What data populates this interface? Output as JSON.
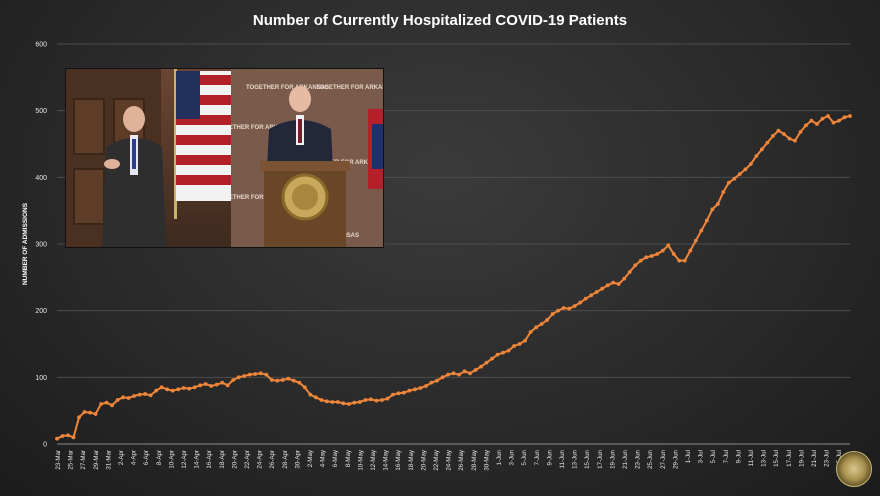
{
  "chart_data": {
    "type": "line",
    "title": "Number of Currently Hospitalized COVID-19 Patients",
    "ylabel": "NUMBER OF ADMISSIONS",
    "xlabel": "",
    "ylim": [
      0,
      600
    ],
    "yticks": [
      0,
      100,
      200,
      300,
      400,
      500,
      600
    ],
    "grid": true,
    "legend": "none",
    "line_color": "#f0863a",
    "tick_labels": [
      "23-Mar",
      "25-Mar",
      "27-Mar",
      "29-Mar",
      "31-Mar",
      "2-Apr",
      "4-Apr",
      "6-Apr",
      "8-Apr",
      "10-Apr",
      "12-Apr",
      "14-Apr",
      "16-Apr",
      "18-Apr",
      "20-Apr",
      "22-Apr",
      "24-Apr",
      "26-Apr",
      "28-Apr",
      "30-Apr",
      "2-May",
      "4-May",
      "6-May",
      "8-May",
      "10-May",
      "12-May",
      "14-May",
      "16-May",
      "18-May",
      "20-May",
      "22-May",
      "24-May",
      "26-May",
      "28-May",
      "30-May",
      "1-Jun",
      "3-Jun",
      "5-Jun",
      "7-Jun",
      "9-Jun",
      "11-Jun",
      "13-Jun",
      "15-Jun",
      "17-Jun",
      "19-Jun",
      "21-Jun",
      "23-Jun",
      "25-Jun",
      "27-Jun",
      "29-Jun",
      "1-Jul",
      "3-Jul",
      "5-Jul",
      "7-Jul",
      "9-Jul",
      "11-Jul",
      "13-Jul",
      "15-Jul",
      "17-Jul",
      "19-Jul",
      "21-Jul",
      "23-Jul",
      "25-Jul"
    ],
    "values": [
      8,
      12,
      13,
      10,
      40,
      48,
      47,
      45,
      60,
      62,
      58,
      66,
      70,
      69,
      72,
      74,
      75,
      73,
      80,
      85,
      82,
      80,
      82,
      84,
      83,
      85,
      88,
      90,
      87,
      89,
      92,
      88,
      96,
      100,
      102,
      104,
      105,
      106,
      104,
      96,
      95,
      96,
      98,
      95,
      92,
      85,
      74,
      70,
      66,
      64,
      63,
      63,
      61,
      60,
      62,
      63,
      66,
      67,
      65,
      66,
      68,
      74,
      76,
      77,
      80,
      82,
      84,
      87,
      92,
      95,
      100,
      104,
      106,
      104,
      109,
      106,
      111,
      116,
      122,
      128,
      134,
      137,
      140,
      147,
      150,
      155,
      168,
      175,
      180,
      186,
      195,
      200,
      204,
      203,
      207,
      212,
      218,
      223,
      228,
      233,
      238,
      242,
      240,
      248,
      258,
      268,
      275,
      280,
      282,
      285,
      290,
      298,
      285,
      275,
      275,
      290,
      305,
      320,
      335,
      352,
      360,
      378,
      392,
      398,
      405,
      412,
      420,
      432,
      442,
      452,
      462,
      470,
      465,
      458,
      455,
      468,
      478,
      485,
      480,
      488,
      492,
      482,
      485,
      490,
      492
    ]
  },
  "inset": {
    "backdrop_text": "TOGETHER FOR ARKANSAS",
    "description_icons": [
      "press-conference-photo",
      "us-flag-icon",
      "podium-seal-icon",
      "arkansas-flag-icon"
    ]
  },
  "corner_logo": "arkansas-state-seal-icon"
}
